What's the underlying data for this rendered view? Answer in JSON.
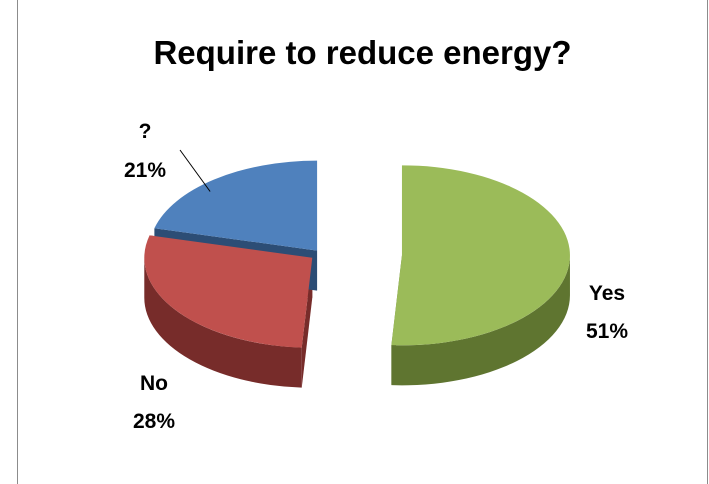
{
  "chart_data": {
    "type": "pie",
    "title": "Require to reduce energy?",
    "slices": [
      {
        "label": "Yes",
        "value": 51,
        "pct_label": "51%",
        "color": "#9bbb59",
        "side_color": "#5f7530"
      },
      {
        "label": "No",
        "value": 28,
        "pct_label": "28%",
        "color": "#c0504d",
        "side_color": "#772c2a"
      },
      {
        "label": "?",
        "value": 21,
        "pct_label": "21%",
        "color": "#4f81bd",
        "side_color": "#2c4d75"
      }
    ],
    "exploded": true,
    "legend": "none"
  }
}
